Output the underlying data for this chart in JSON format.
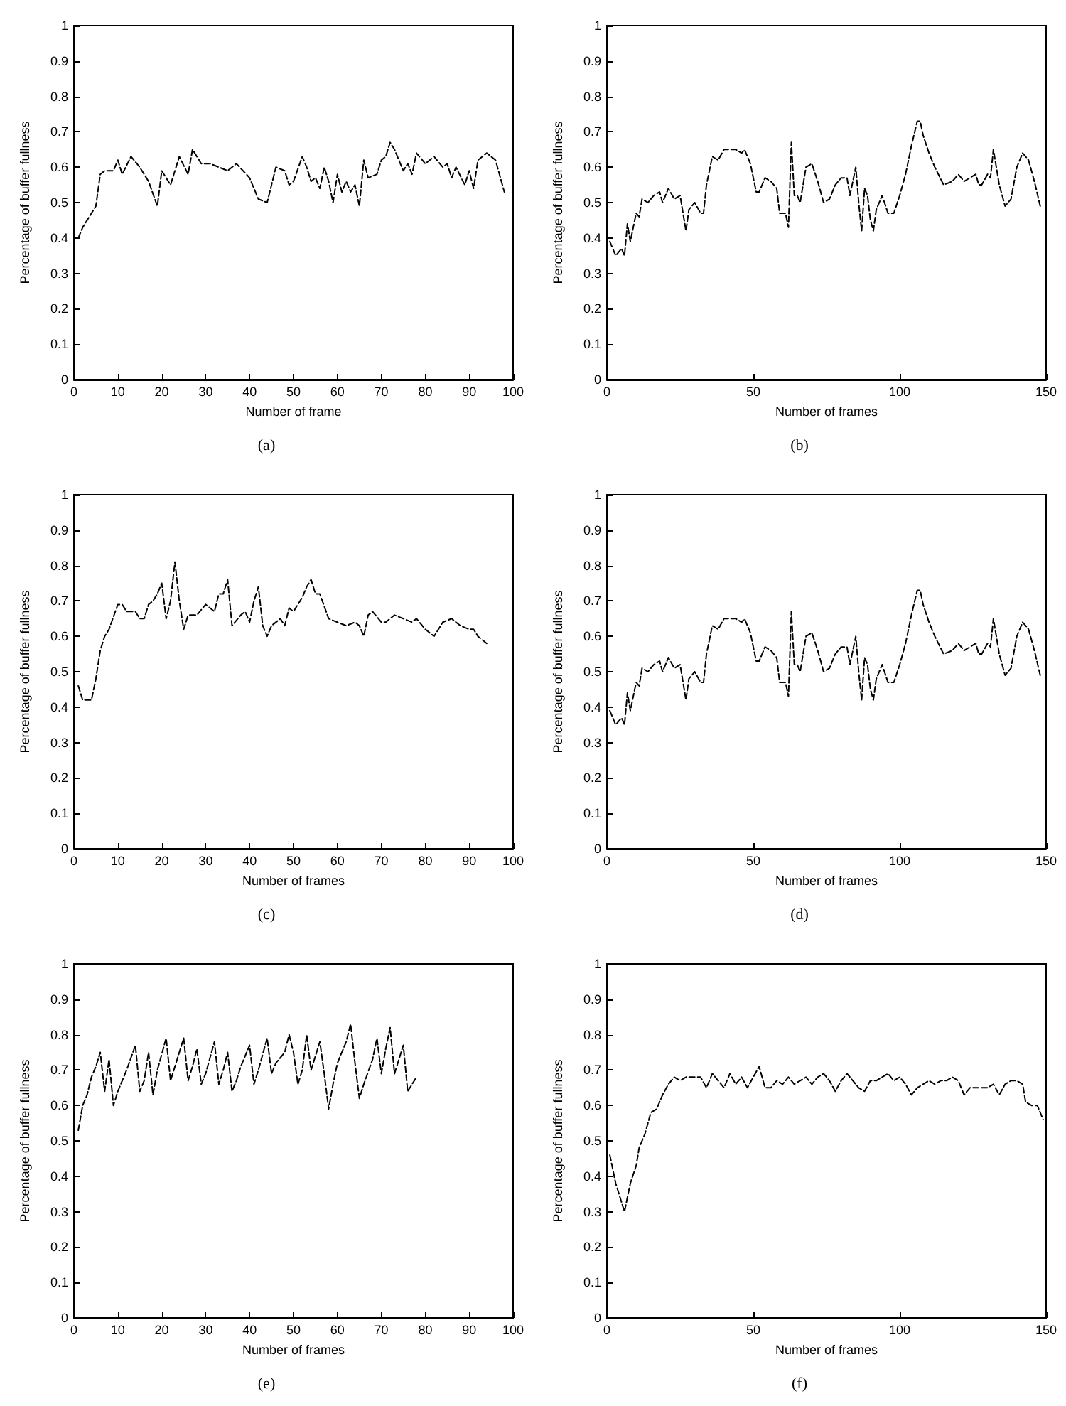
{
  "chart_data": [
    {
      "type": "line",
      "xlabel": "Number of frame",
      "ylabel": "Percentage of buffer fullness",
      "annotations": [
        "(a)"
      ],
      "color": "#000000",
      "line_style": "dashed",
      "marker": "none",
      "xlim": [
        0,
        100
      ],
      "xticks": [
        0,
        10,
        20,
        30,
        40,
        50,
        60,
        70,
        80,
        90,
        100
      ],
      "ylim": [
        0,
        1
      ],
      "yticks": [
        0,
        0.1,
        0.2,
        0.3,
        0.4,
        0.5,
        0.6,
        0.7,
        0.8,
        0.9,
        1
      ],
      "x": [
        1,
        2,
        3,
        4,
        5,
        6,
        7,
        9,
        10,
        11,
        13,
        15,
        17,
        19,
        20,
        22,
        24,
        26,
        27,
        29,
        31,
        35,
        37,
        40,
        42,
        44,
        46,
        48,
        49,
        50,
        52,
        53,
        54,
        55,
        56,
        57,
        58,
        59,
        60,
        61,
        62,
        63,
        64,
        65,
        66,
        67,
        69,
        70,
        71,
        72,
        73,
        75,
        76,
        77,
        78,
        80,
        82,
        84,
        85,
        86,
        87,
        89,
        90,
        91,
        92,
        94,
        96,
        98
      ],
      "values": [
        0.4,
        0.43,
        0.45,
        0.47,
        0.49,
        0.58,
        0.59,
        0.59,
        0.62,
        0.58,
        0.63,
        0.6,
        0.56,
        0.49,
        0.59,
        0.55,
        0.63,
        0.58,
        0.65,
        0.61,
        0.61,
        0.59,
        0.61,
        0.57,
        0.51,
        0.5,
        0.6,
        0.59,
        0.55,
        0.56,
        0.63,
        0.6,
        0.56,
        0.57,
        0.54,
        0.6,
        0.56,
        0.5,
        0.58,
        0.53,
        0.56,
        0.53,
        0.55,
        0.49,
        0.62,
        0.57,
        0.58,
        0.62,
        0.63,
        0.67,
        0.65,
        0.59,
        0.61,
        0.58,
        0.64,
        0.61,
        0.63,
        0.6,
        0.61,
        0.57,
        0.6,
        0.55,
        0.59,
        0.54,
        0.62,
        0.64,
        0.62,
        0.53
      ]
    },
    {
      "type": "line",
      "xlabel": "Number of frames",
      "ylabel": "Percentage of buffer fullness",
      "annotations": [
        "(b)"
      ],
      "color": "#000000",
      "line_style": "dashed",
      "marker": "none",
      "xlim": [
        0,
        150
      ],
      "xticks": [
        0,
        50,
        100,
        150
      ],
      "ylim": [
        0,
        1
      ],
      "yticks": [
        0,
        0.1,
        0.2,
        0.3,
        0.4,
        0.5,
        0.6,
        0.7,
        0.8,
        0.9,
        1
      ],
      "x": [
        1,
        3,
        5,
        6,
        7,
        8,
        10,
        11,
        12,
        14,
        16,
        18,
        19,
        21,
        23,
        25,
        27,
        28,
        30,
        32,
        33,
        34,
        36,
        38,
        40,
        42,
        44,
        46,
        47,
        49,
        51,
        52,
        54,
        56,
        58,
        59,
        61,
        62,
        63,
        64,
        65,
        66,
        68,
        70,
        72,
        74,
        76,
        78,
        80,
        82,
        83,
        85,
        86,
        87,
        88,
        89,
        90,
        91,
        92,
        94,
        96,
        98,
        100,
        102,
        104,
        106,
        107,
        108,
        110,
        112,
        115,
        118,
        120,
        122,
        124,
        126,
        127,
        128,
        130,
        131,
        132,
        134,
        136,
        138,
        140,
        142,
        144,
        146,
        148
      ],
      "values": [
        0.39,
        0.35,
        0.37,
        0.35,
        0.44,
        0.39,
        0.47,
        0.46,
        0.51,
        0.5,
        0.52,
        0.53,
        0.5,
        0.54,
        0.51,
        0.52,
        0.42,
        0.48,
        0.5,
        0.47,
        0.47,
        0.55,
        0.63,
        0.62,
        0.65,
        0.65,
        0.65,
        0.64,
        0.65,
        0.61,
        0.53,
        0.53,
        0.57,
        0.56,
        0.54,
        0.47,
        0.47,
        0.43,
        0.67,
        0.52,
        0.52,
        0.5,
        0.6,
        0.61,
        0.56,
        0.5,
        0.51,
        0.55,
        0.57,
        0.57,
        0.52,
        0.6,
        0.5,
        0.42,
        0.54,
        0.52,
        0.45,
        0.42,
        0.48,
        0.52,
        0.47,
        0.47,
        0.52,
        0.58,
        0.66,
        0.73,
        0.73,
        0.69,
        0.64,
        0.6,
        0.55,
        0.56,
        0.58,
        0.56,
        0.57,
        0.58,
        0.55,
        0.55,
        0.58,
        0.57,
        0.65,
        0.55,
        0.49,
        0.51,
        0.6,
        0.64,
        0.62,
        0.56,
        0.49
      ]
    },
    {
      "type": "line",
      "xlabel": "Number of frames",
      "ylabel": "Percentage of buffer fullness",
      "annotations": [
        "(c)"
      ],
      "color": "#000000",
      "line_style": "dashed",
      "marker": "none",
      "xlim": [
        0,
        100
      ],
      "xticks": [
        0,
        10,
        20,
        30,
        40,
        50,
        60,
        70,
        80,
        90,
        100
      ],
      "ylim": [
        0,
        1
      ],
      "yticks": [
        0,
        0.1,
        0.2,
        0.3,
        0.4,
        0.5,
        0.6,
        0.7,
        0.8,
        0.9,
        1
      ],
      "x": [
        1,
        2,
        4,
        5,
        6,
        7,
        8,
        10,
        11,
        12,
        14,
        15,
        16,
        17,
        18,
        19,
        20,
        21,
        22,
        23,
        24,
        25,
        26,
        28,
        30,
        32,
        33,
        34,
        35,
        36,
        38,
        39,
        40,
        41,
        42,
        43,
        44,
        45,
        47,
        48,
        49,
        50,
        52,
        53,
        54,
        55,
        56,
        58,
        60,
        62,
        64,
        65,
        66,
        67,
        68,
        70,
        71,
        73,
        75,
        77,
        78,
        80,
        82,
        84,
        86,
        88,
        90,
        91,
        92,
        94
      ],
      "values": [
        0.46,
        0.42,
        0.42,
        0.48,
        0.56,
        0.6,
        0.62,
        0.69,
        0.69,
        0.67,
        0.67,
        0.65,
        0.65,
        0.69,
        0.7,
        0.72,
        0.75,
        0.65,
        0.7,
        0.81,
        0.7,
        0.62,
        0.66,
        0.66,
        0.69,
        0.67,
        0.72,
        0.72,
        0.76,
        0.63,
        0.66,
        0.67,
        0.64,
        0.7,
        0.74,
        0.63,
        0.6,
        0.63,
        0.65,
        0.63,
        0.68,
        0.67,
        0.71,
        0.74,
        0.76,
        0.72,
        0.72,
        0.65,
        0.64,
        0.63,
        0.64,
        0.63,
        0.6,
        0.66,
        0.67,
        0.64,
        0.64,
        0.66,
        0.65,
        0.64,
        0.65,
        0.62,
        0.6,
        0.64,
        0.65,
        0.63,
        0.62,
        0.62,
        0.6,
        0.58
      ]
    },
    {
      "type": "line",
      "xlabel": "Number of frames",
      "ylabel": "Percentage of buffer fullness",
      "annotations": [
        "(d)"
      ],
      "color": "#000000",
      "line_style": "dashed",
      "marker": "none",
      "xlim": [
        0,
        150
      ],
      "xticks": [
        0,
        50,
        100,
        150
      ],
      "ylim": [
        0,
        1
      ],
      "yticks": [
        0,
        0.1,
        0.2,
        0.3,
        0.4,
        0.5,
        0.6,
        0.7,
        0.8,
        0.9,
        1
      ],
      "x": [
        1,
        3,
        5,
        6,
        7,
        8,
        10,
        11,
        12,
        14,
        16,
        18,
        19,
        21,
        23,
        25,
        27,
        28,
        30,
        32,
        33,
        34,
        36,
        38,
        40,
        42,
        44,
        46,
        47,
        49,
        51,
        52,
        54,
        56,
        58,
        59,
        61,
        62,
        63,
        64,
        65,
        66,
        68,
        70,
        72,
        74,
        76,
        78,
        80,
        82,
        83,
        85,
        86,
        87,
        88,
        89,
        90,
        91,
        92,
        94,
        96,
        98,
        100,
        102,
        104,
        106,
        107,
        108,
        110,
        112,
        115,
        118,
        120,
        122,
        124,
        126,
        127,
        128,
        130,
        131,
        132,
        134,
        136,
        138,
        140,
        142,
        144,
        146,
        148
      ],
      "values": [
        0.39,
        0.35,
        0.37,
        0.35,
        0.44,
        0.39,
        0.47,
        0.46,
        0.51,
        0.5,
        0.52,
        0.53,
        0.5,
        0.54,
        0.51,
        0.52,
        0.42,
        0.48,
        0.5,
        0.47,
        0.47,
        0.55,
        0.63,
        0.62,
        0.65,
        0.65,
        0.65,
        0.64,
        0.65,
        0.61,
        0.53,
        0.53,
        0.57,
        0.56,
        0.54,
        0.47,
        0.47,
        0.43,
        0.67,
        0.52,
        0.52,
        0.5,
        0.6,
        0.61,
        0.56,
        0.5,
        0.51,
        0.55,
        0.57,
        0.57,
        0.52,
        0.6,
        0.5,
        0.42,
        0.54,
        0.52,
        0.45,
        0.42,
        0.48,
        0.52,
        0.47,
        0.47,
        0.52,
        0.58,
        0.66,
        0.73,
        0.73,
        0.69,
        0.64,
        0.6,
        0.55,
        0.56,
        0.58,
        0.56,
        0.57,
        0.58,
        0.55,
        0.55,
        0.58,
        0.57,
        0.65,
        0.55,
        0.49,
        0.51,
        0.6,
        0.64,
        0.62,
        0.56,
        0.49
      ]
    },
    {
      "type": "line",
      "xlabel": "Number of frames",
      "ylabel": "Percentage of buffer fullness",
      "annotations": [
        "(e)"
      ],
      "color": "#000000",
      "line_style": "dashed",
      "marker": "none",
      "xlim": [
        0,
        100
      ],
      "xticks": [
        0,
        10,
        20,
        30,
        40,
        50,
        60,
        70,
        80,
        90,
        100
      ],
      "ylim": [
        0,
        1
      ],
      "yticks": [
        0,
        0.1,
        0.2,
        0.3,
        0.4,
        0.5,
        0.6,
        0.7,
        0.8,
        0.9,
        1
      ],
      "x": [
        1,
        2,
        3,
        4,
        5,
        6,
        7,
        8,
        9,
        10,
        12,
        14,
        15,
        16,
        17,
        18,
        19,
        21,
        22,
        23,
        25,
        26,
        27,
        28,
        29,
        30,
        32,
        33,
        34,
        35,
        36,
        37,
        38,
        40,
        41,
        42,
        44,
        45,
        46,
        48,
        49,
        50,
        51,
        52,
        53,
        54,
        55,
        56,
        57,
        58,
        59,
        60,
        62,
        63,
        64,
        65,
        66,
        68,
        69,
        70,
        71,
        72,
        73,
        74,
        75,
        76,
        77,
        78
      ],
      "values": [
        0.53,
        0.6,
        0.63,
        0.68,
        0.71,
        0.75,
        0.64,
        0.73,
        0.6,
        0.64,
        0.7,
        0.77,
        0.64,
        0.67,
        0.75,
        0.63,
        0.7,
        0.79,
        0.67,
        0.71,
        0.79,
        0.67,
        0.71,
        0.76,
        0.66,
        0.69,
        0.78,
        0.66,
        0.7,
        0.75,
        0.64,
        0.67,
        0.71,
        0.77,
        0.66,
        0.7,
        0.79,
        0.69,
        0.72,
        0.75,
        0.8,
        0.75,
        0.66,
        0.7,
        0.8,
        0.7,
        0.74,
        0.78,
        0.69,
        0.59,
        0.66,
        0.72,
        0.78,
        0.83,
        0.72,
        0.62,
        0.66,
        0.73,
        0.79,
        0.69,
        0.76,
        0.82,
        0.69,
        0.73,
        0.77,
        0.64,
        0.66,
        0.68
      ]
    },
    {
      "type": "line",
      "xlabel": "Number of frames",
      "ylabel": "Percentage of buffer fullness",
      "annotations": [
        "(f)"
      ],
      "color": "#000000",
      "line_style": "dashed",
      "marker": "none",
      "xlim": [
        0,
        150
      ],
      "xticks": [
        0,
        50,
        100,
        150
      ],
      "ylim": [
        0,
        1
      ],
      "yticks": [
        0,
        0.1,
        0.2,
        0.3,
        0.4,
        0.5,
        0.6,
        0.7,
        0.8,
        0.9,
        1
      ],
      "x": [
        1,
        3,
        6,
        8,
        10,
        11,
        13,
        15,
        17,
        19,
        21,
        23,
        25,
        27,
        30,
        32,
        34,
        36,
        38,
        40,
        42,
        44,
        46,
        48,
        50,
        52,
        54,
        56,
        58,
        60,
        62,
        64,
        66,
        68,
        70,
        72,
        74,
        76,
        78,
        80,
        82,
        84,
        86,
        88,
        90,
        92,
        94,
        96,
        98,
        100,
        102,
        104,
        106,
        108,
        110,
        112,
        114,
        116,
        118,
        120,
        122,
        124,
        126,
        128,
        130,
        132,
        134,
        136,
        138,
        140,
        142,
        143,
        145,
        147,
        149
      ],
      "values": [
        0.46,
        0.38,
        0.3,
        0.38,
        0.43,
        0.48,
        0.52,
        0.58,
        0.59,
        0.63,
        0.66,
        0.68,
        0.67,
        0.68,
        0.68,
        0.68,
        0.65,
        0.69,
        0.67,
        0.65,
        0.69,
        0.66,
        0.68,
        0.65,
        0.68,
        0.71,
        0.65,
        0.65,
        0.67,
        0.66,
        0.68,
        0.66,
        0.67,
        0.68,
        0.66,
        0.68,
        0.69,
        0.67,
        0.64,
        0.67,
        0.69,
        0.67,
        0.65,
        0.64,
        0.67,
        0.67,
        0.68,
        0.69,
        0.67,
        0.68,
        0.66,
        0.63,
        0.65,
        0.66,
        0.67,
        0.66,
        0.67,
        0.67,
        0.68,
        0.67,
        0.63,
        0.65,
        0.65,
        0.65,
        0.65,
        0.66,
        0.63,
        0.66,
        0.67,
        0.67,
        0.66,
        0.61,
        0.6,
        0.6,
        0.56
      ]
    }
  ]
}
